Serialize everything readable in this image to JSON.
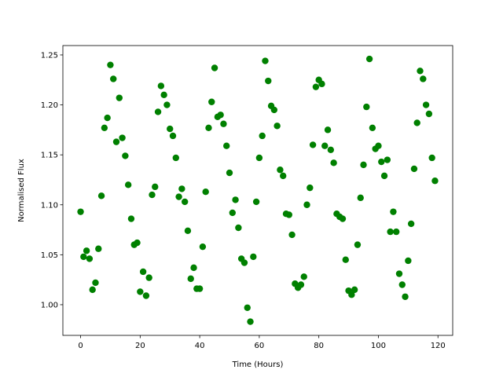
{
  "chart_data": {
    "type": "scatter",
    "x_label": "Time (Hours)",
    "y_label": "Normalised Flux",
    "color": "#008000",
    "x": [
      0,
      1,
      2,
      3,
      4,
      5,
      6,
      7,
      8,
      9,
      10,
      11,
      12,
      13,
      14,
      15,
      16,
      17,
      18,
      19,
      20,
      21,
      22,
      23,
      24,
      25,
      26,
      27,
      28,
      29,
      30,
      31,
      32,
      33,
      34,
      35,
      36,
      37,
      38,
      39,
      40,
      41,
      42,
      43,
      44,
      45,
      46,
      47,
      48,
      49,
      50,
      51,
      52,
      53,
      54,
      55,
      56,
      57,
      58,
      59,
      60,
      61,
      62,
      63,
      64,
      65,
      66,
      67,
      68,
      69,
      70,
      71,
      72,
      73,
      74,
      75,
      76,
      77,
      78,
      79,
      80,
      81,
      82,
      83,
      84,
      85,
      86,
      87,
      88,
      89,
      90,
      91,
      92,
      93,
      94,
      95,
      96,
      97,
      98,
      99,
      100,
      101,
      102,
      103,
      104,
      105,
      106,
      107,
      108,
      109,
      110,
      111,
      112,
      113,
      114,
      115,
      116,
      117,
      118,
      119
    ],
    "values": [
      1.093,
      1.048,
      1.054,
      1.046,
      1.015,
      1.022,
      1.056,
      1.109,
      1.177,
      1.187,
      1.24,
      1.226,
      1.163,
      1.207,
      1.167,
      1.149,
      1.12,
      1.086,
      1.06,
      1.062,
      1.013,
      1.033,
      1.009,
      1.027,
      1.11,
      1.118,
      1.193,
      1.219,
      1.21,
      1.2,
      1.176,
      1.169,
      1.147,
      1.108,
      1.116,
      1.103,
      1.074,
      1.026,
      1.037,
      1.016,
      1.016,
      1.058,
      1.113,
      1.177,
      1.203,
      1.237,
      1.188,
      1.19,
      1.181,
      1.159,
      1.132,
      1.092,
      1.105,
      1.077,
      1.046,
      1.042,
      0.997,
      0.983,
      1.048,
      1.103,
      1.147,
      1.169,
      1.244,
      1.224,
      1.199,
      1.195,
      1.179,
      1.135,
      1.129,
      1.091,
      1.09,
      1.07,
      1.021,
      1.017,
      1.02,
      1.028,
      1.1,
      1.117,
      1.16,
      1.218,
      1.225,
      1.221,
      1.159,
      1.175,
      1.155,
      1.142,
      1.091,
      1.088,
      1.086,
      1.045,
      1.014,
      1.01,
      1.015,
      1.06,
      1.107,
      1.14,
      1.198,
      1.246,
      1.177,
      1.156,
      1.159,
      1.143,
      1.129,
      1.145,
      1.073,
      1.093,
      1.073,
      1.031,
      1.02,
      1.008,
      1.044,
      1.081,
      1.136,
      1.182,
      1.234,
      1.226,
      1.2,
      1.191,
      1.147,
      1.124
    ],
    "xlim": [
      -5.95,
      124.95
    ],
    "xticks": [
      0,
      20,
      40,
      60,
      80,
      100,
      120
    ],
    "ylim": [
      0.9693,
      1.2594
    ],
    "yticks": [
      {
        "value": 1.0,
        "label": "1.00"
      },
      1.05,
      {
        "value": 1.1,
        "label": "1.10"
      },
      1.15,
      {
        "value": 1.2,
        "label": "1.20"
      },
      1.25
    ]
  }
}
